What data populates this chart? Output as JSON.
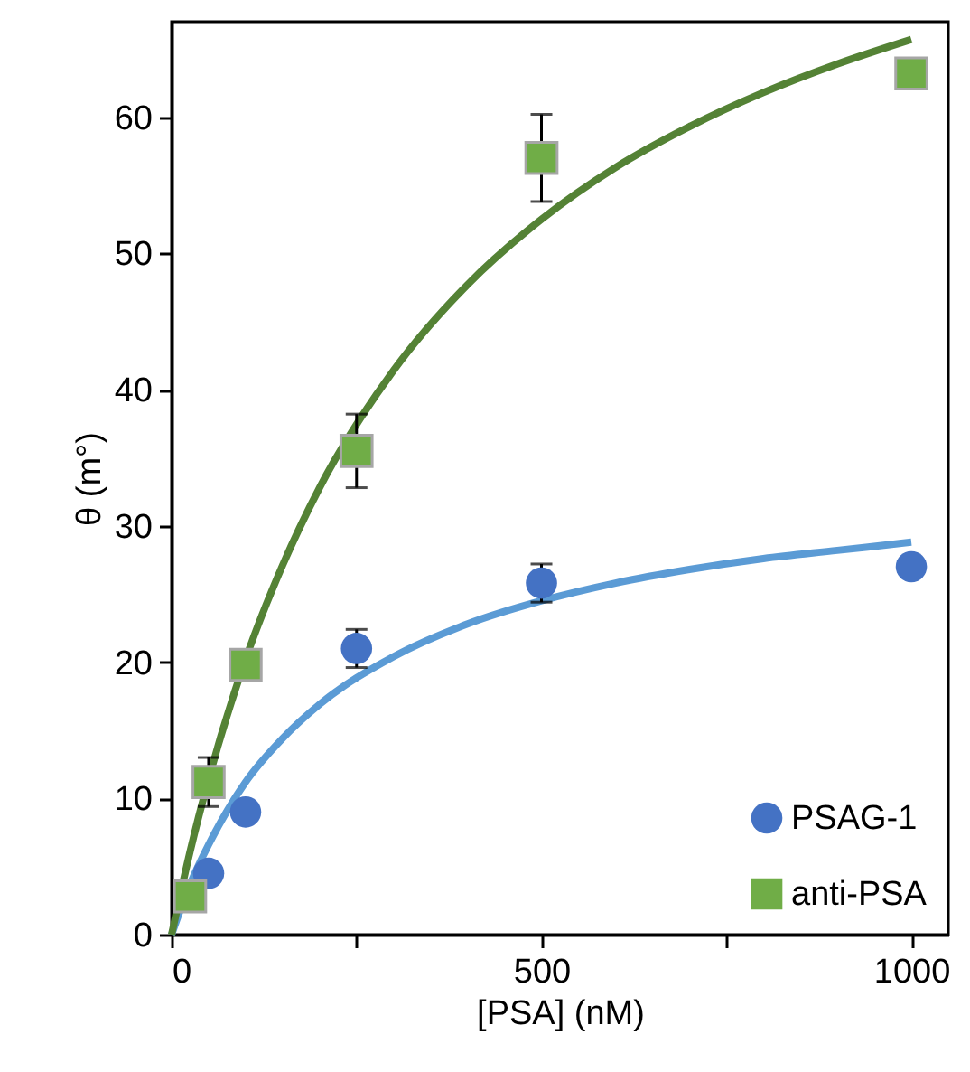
{
  "chart_data": {
    "type": "scatter",
    "xlabel": "[PSA] (nM)",
    "ylabel": "θ (m°)",
    "xlim": [
      0,
      1050
    ],
    "xticks": [
      0,
      {
        "value": 250,
        "label": null
      },
      500,
      {
        "value": 750,
        "label": null
      },
      1000
    ],
    "ylim": [
      0,
      67
    ],
    "yticks": [
      0,
      10,
      20,
      30,
      40,
      50,
      60
    ],
    "grid": false,
    "legend": "bottom right",
    "series": [
      {
        "name": "PSAG-1",
        "marker": "circle",
        "color": "#4472c4",
        "x": [
          50,
          100,
          250,
          500,
          1000
        ],
        "values": [
          4.5,
          9,
          21,
          25.8,
          27
        ],
        "errors": [
          null,
          null,
          1.4,
          1.4,
          null
        ]
      },
      {
        "name": "anti-PSA",
        "marker": "square",
        "color": "#70ad47",
        "x": [
          25,
          50,
          100,
          250,
          500,
          1000
        ],
        "values": [
          2.8,
          11.2,
          19.8,
          35.5,
          57,
          63.2
        ],
        "errors": [
          null,
          1.8,
          null,
          2.7,
          3.2,
          null
        ]
      },
      {
        "type": "line",
        "color": "#5b9bd5",
        "x": [
          0,
          25,
          50,
          100,
          150,
          200,
          300,
          400,
          500,
          600,
          700,
          800,
          900,
          1000
        ],
        "values": [
          0,
          3.7,
          6.6,
          11.2,
          14.4,
          16.9,
          20.4,
          22.8,
          24.5,
          25.8,
          26.8,
          27.6,
          28.2,
          28.8
        ]
      },
      {
        "type": "line",
        "color": "#548235",
        "x": [
          0,
          25,
          50,
          100,
          150,
          200,
          300,
          400,
          500,
          600,
          700,
          800,
          900,
          1000
        ],
        "values": [
          0,
          6.1,
          11.4,
          20.2,
          27.1,
          32.8,
          41.4,
          47.7,
          52.5,
          56.3,
          59.3,
          61.8,
          63.9,
          65.7
        ]
      }
    ]
  }
}
